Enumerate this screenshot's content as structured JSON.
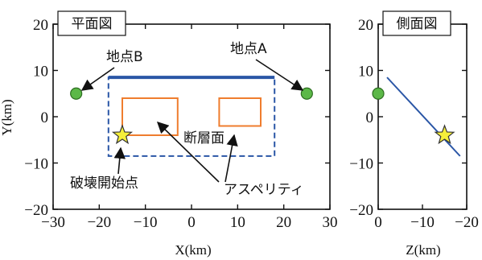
{
  "chart_data": [
    {
      "type": "scatter",
      "panel": "plan",
      "title": "平面図",
      "xlabel": "X(km)",
      "ylabel": "Y(km)",
      "xlim": [
        -30,
        30
      ],
      "ylim": [
        -20,
        20
      ],
      "xticks": [
        -30,
        -20,
        -10,
        0,
        10,
        20,
        30
      ],
      "yticks": [
        -20,
        -10,
        0,
        10,
        20
      ],
      "points": [
        {
          "name": "地点A",
          "x": 25,
          "y": 5,
          "marker": "circle"
        },
        {
          "name": "地点B",
          "x": -25,
          "y": 5,
          "marker": "circle"
        },
        {
          "name": "破壊開始点",
          "x": -15,
          "y": -4,
          "marker": "star"
        }
      ],
      "fault_plane": {
        "label": "断層面",
        "x": [
          -18,
          18
        ],
        "y": [
          -8.5,
          8.5
        ],
        "top_edge_y": 8.5
      },
      "asperities": {
        "label": "アスペリティ",
        "rects": [
          {
            "x": [
              -15,
              -3
            ],
            "y": [
              -4,
              4
            ]
          },
          {
            "x": [
              6,
              15
            ],
            "y": [
              -2,
              4
            ]
          }
        ]
      },
      "grid": false
    },
    {
      "type": "line",
      "panel": "side",
      "title": "側面図",
      "xlabel": "Z(km)",
      "ylabel": "",
      "xlim": [
        0,
        -20
      ],
      "ylim": [
        -20,
        20
      ],
      "xticks": [
        0,
        -10,
        -20
      ],
      "yticks": [
        -20,
        -10,
        0,
        10,
        20
      ],
      "fault_line": {
        "x": [
          -2,
          -18.5
        ],
        "y": [
          8.5,
          -8.5
        ]
      },
      "points": [
        {
          "x": 0,
          "y": 5,
          "marker": "circle"
        },
        {
          "x": -15,
          "y": -4,
          "marker": "star"
        }
      ],
      "grid": false
    }
  ],
  "colors": {
    "fault": "#2a56a6",
    "asperity": "#ef7d2e",
    "site_fill": "#5cb848",
    "site_stroke": "#2e6e22",
    "star_fill": "#f5ef3a",
    "star_stroke": "#333333",
    "axis": "#111111"
  }
}
